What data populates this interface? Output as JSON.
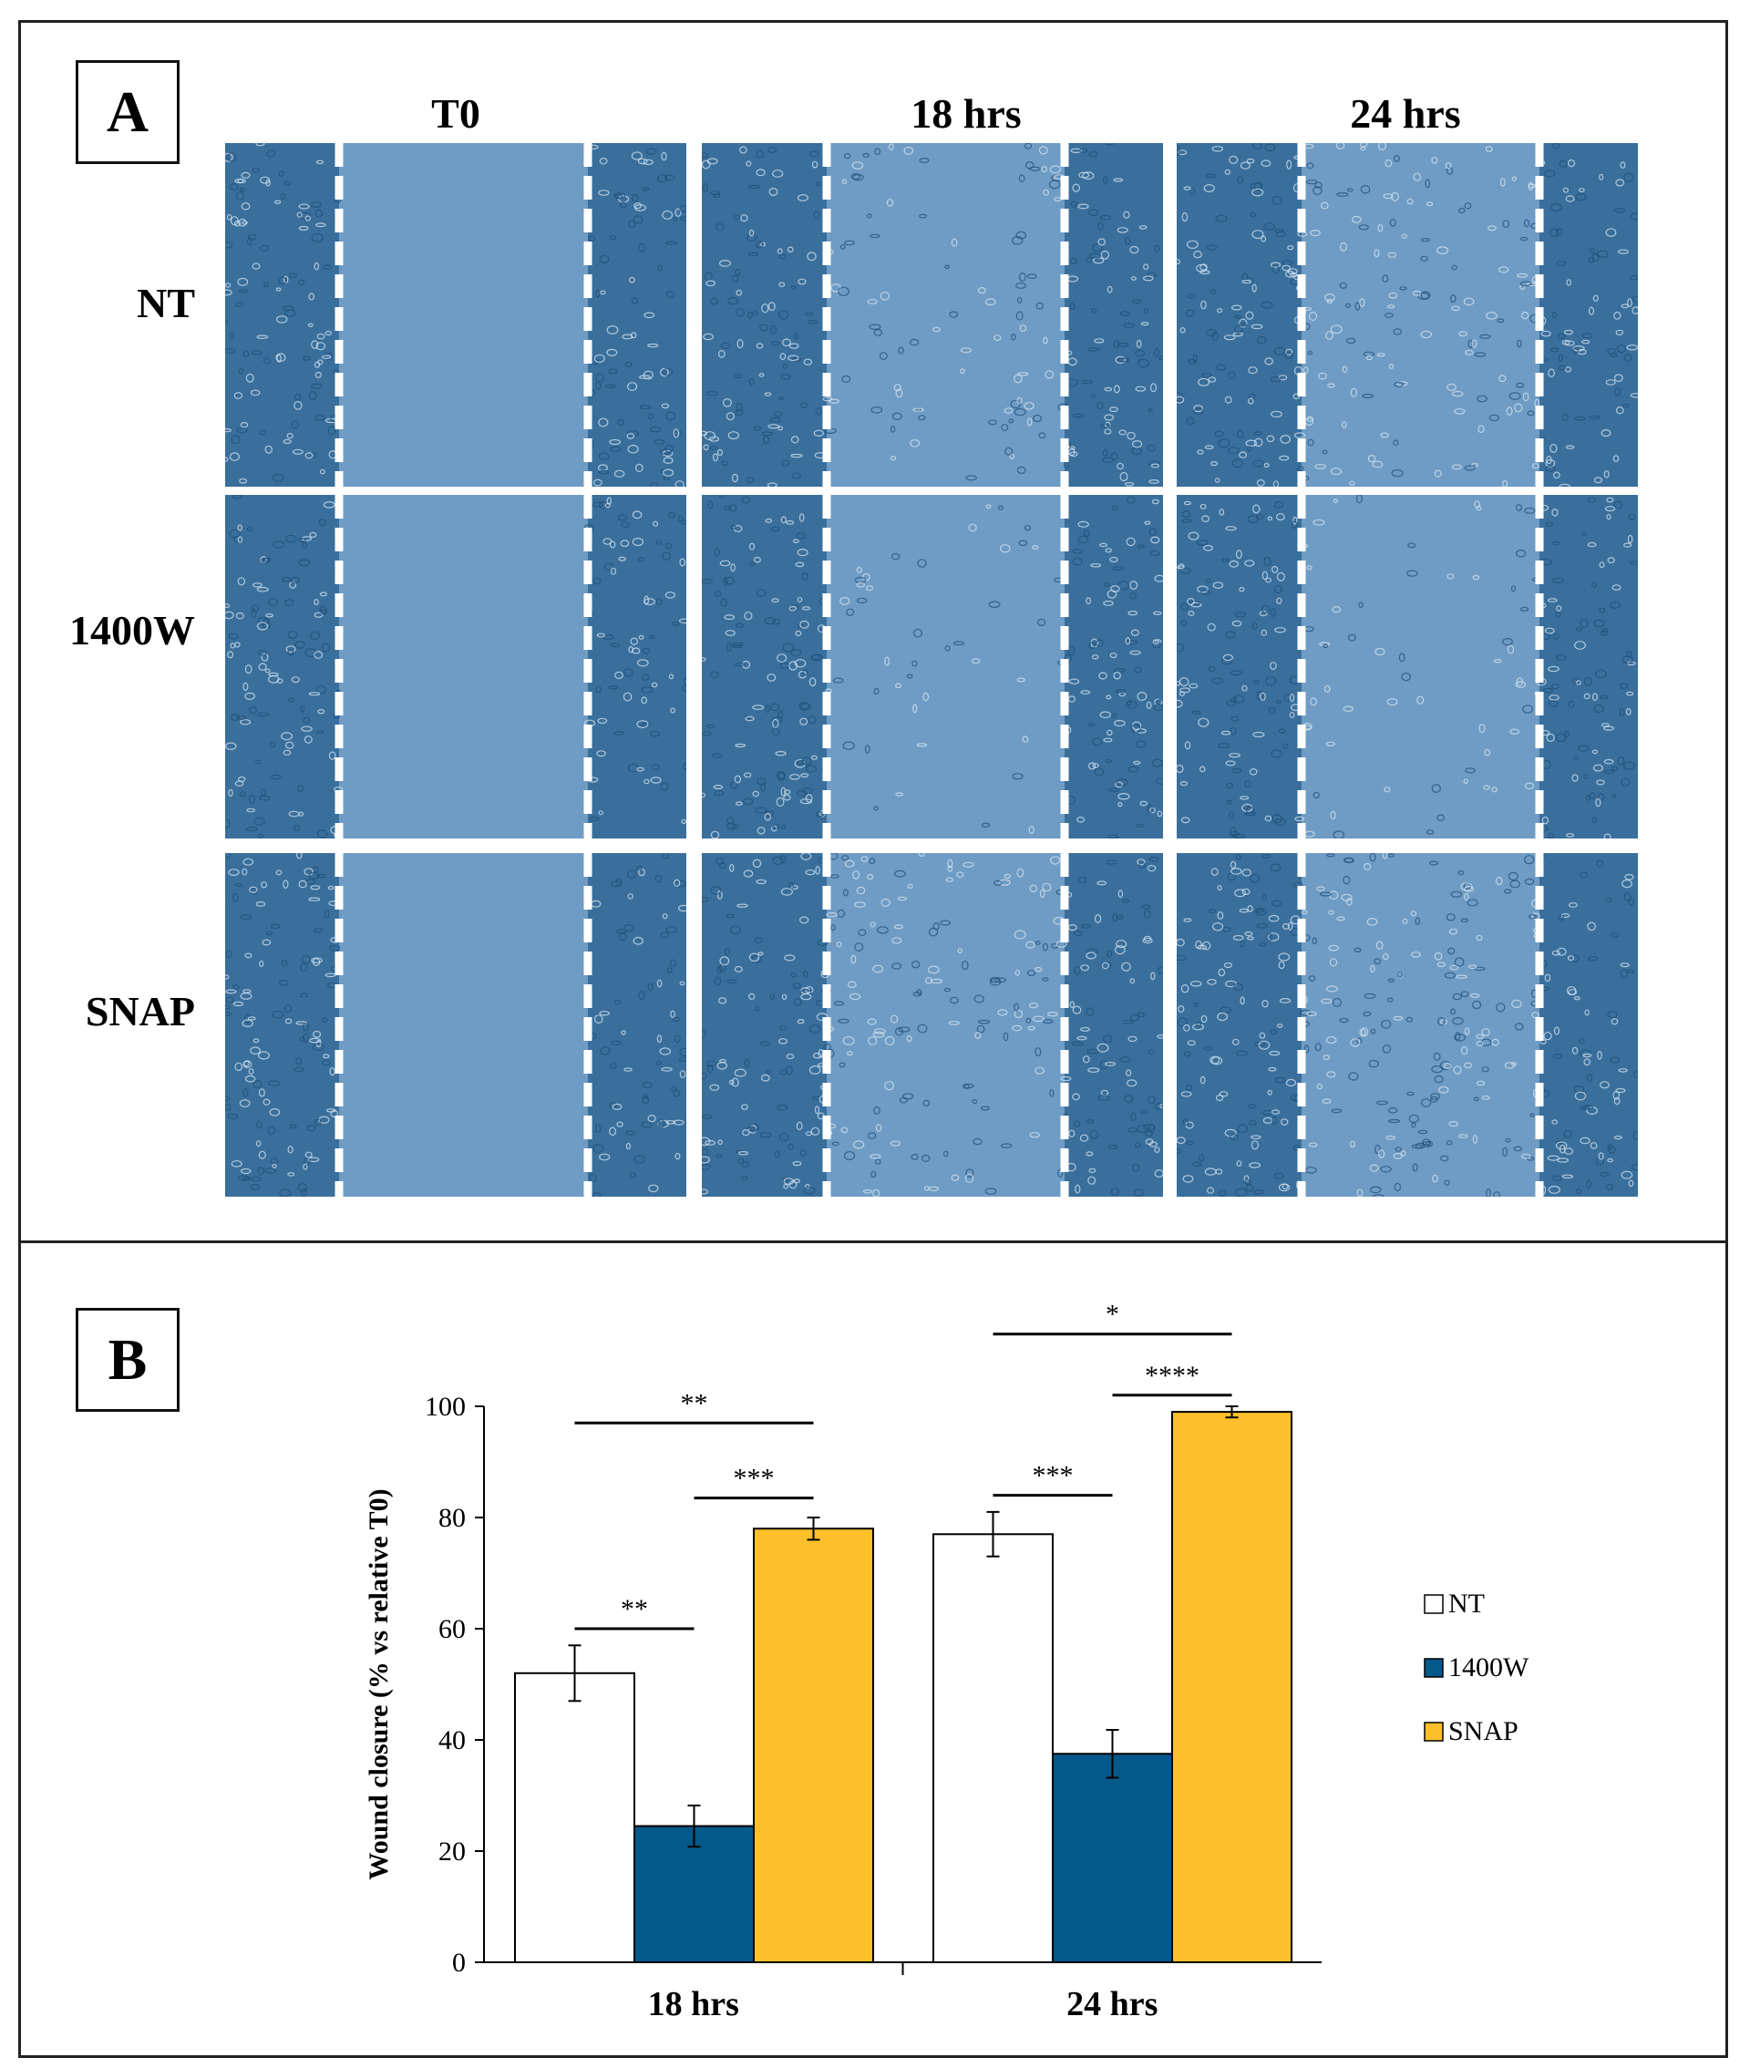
{
  "panel_a": {
    "letter": "A",
    "columns": [
      "T0",
      "18 hrs",
      "24 hrs"
    ],
    "rows": [
      "NT",
      "1400W",
      "SNAP"
    ],
    "images": [
      {
        "row": "NT",
        "col": "T0",
        "gap_closure": 0.0
      },
      {
        "row": "NT",
        "col": "18 hrs",
        "gap_closure": 0.5
      },
      {
        "row": "NT",
        "col": "24 hrs",
        "gap_closure": 0.78
      },
      {
        "row": "1400W",
        "col": "T0",
        "gap_closure": 0.0
      },
      {
        "row": "1400W",
        "col": "18 hrs",
        "gap_closure": 0.25
      },
      {
        "row": "1400W",
        "col": "24 hrs",
        "gap_closure": 0.38
      },
      {
        "row": "SNAP",
        "col": "T0",
        "gap_closure": 0.0
      },
      {
        "row": "SNAP",
        "col": "18 hrs",
        "gap_closure": 0.78
      },
      {
        "row": "SNAP",
        "col": "24 hrs",
        "gap_closure": 0.99
      }
    ],
    "colors": {
      "cell_bg": "#3a6f9c",
      "cell_light": "#6f9cc4",
      "dash": "#ffffff"
    }
  },
  "chart_data": {
    "panel_letter": "B",
    "type": "bar",
    "categories": [
      "18 hrs",
      "24 hrs"
    ],
    "series": [
      {
        "name": "NT",
        "values": [
          52,
          77
        ],
        "errors": [
          5,
          4
        ],
        "color": "#ffffff"
      },
      {
        "name": "1400W",
        "values": [
          24.5,
          37.5
        ],
        "errors": [
          3.7,
          4.3
        ],
        "color": "#05588a"
      },
      {
        "name": "SNAP",
        "values": [
          78,
          99
        ],
        "errors": [
          2,
          1
        ],
        "color": "#fec02a"
      }
    ],
    "ylabel": "Wound closure (% vs relative T0)",
    "xlabel": "",
    "ylim": [
      0,
      100
    ],
    "yticks": [
      0,
      20,
      40,
      60,
      80,
      100
    ],
    "legend_position": "right",
    "significance": [
      {
        "category": "18 hrs",
        "from": "NT",
        "to": "1400W",
        "label": "**",
        "y": 60
      },
      {
        "category": "18 hrs",
        "from": "NT",
        "to": "SNAP",
        "label": "**",
        "y": 97
      },
      {
        "category": "18 hrs",
        "from": "1400W",
        "to": "SNAP",
        "label": "***",
        "y": 83.5
      },
      {
        "category": "24 hrs",
        "from": "NT",
        "to": "1400W",
        "label": "***",
        "y": 84
      },
      {
        "category": "24 hrs",
        "from": "NT",
        "to": "SNAP",
        "label": "*",
        "y": 113
      },
      {
        "category": "24 hrs",
        "from": "1400W",
        "to": "SNAP",
        "label": "****",
        "y": 102
      }
    ]
  }
}
